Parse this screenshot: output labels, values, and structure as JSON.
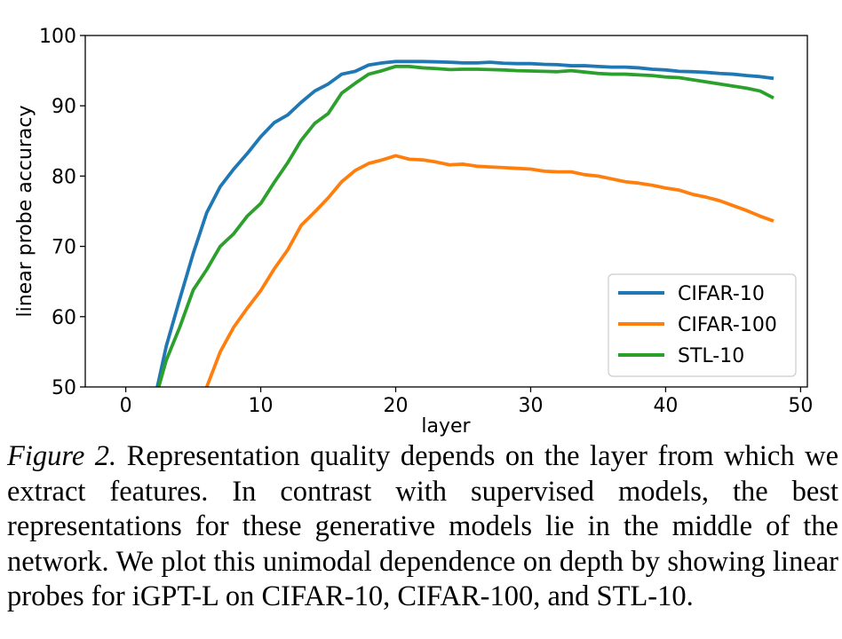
{
  "chart_data": {
    "type": "line",
    "xlabel": "layer",
    "ylabel": "linear probe accuracy",
    "xlim": [
      -3,
      50.5
    ],
    "ylim": [
      50,
      100
    ],
    "xticks": [
      0,
      10,
      20,
      30,
      40,
      50
    ],
    "yticks": [
      50,
      60,
      70,
      80,
      90,
      100
    ],
    "grid": false,
    "legend_position": "lower-right",
    "series": [
      {
        "name": "CIFAR-10",
        "color": "#1f77b4",
        "x": [
          2,
          3,
          4,
          5,
          6,
          7,
          8,
          9,
          10,
          11,
          12,
          13,
          14,
          15,
          16,
          17,
          18,
          19,
          20,
          21,
          22,
          23,
          24,
          25,
          26,
          27,
          28,
          29,
          30,
          31,
          32,
          33,
          34,
          35,
          36,
          37,
          38,
          39,
          40,
          41,
          42,
          43,
          44,
          45,
          46,
          47,
          48
        ],
        "values": [
          47,
          55.8,
          62.5,
          69.0,
          74.8,
          78.5,
          81.0,
          83.2,
          85.6,
          87.6,
          88.7,
          90.5,
          92.1,
          93.1,
          94.5,
          94.9,
          95.8,
          96.1,
          96.3,
          96.3,
          96.3,
          96.25,
          96.2,
          96.1,
          96.1,
          96.2,
          96.05,
          96.0,
          96.0,
          95.9,
          95.85,
          95.7,
          95.7,
          95.6,
          95.5,
          95.5,
          95.4,
          95.2,
          95.1,
          94.9,
          94.85,
          94.75,
          94.6,
          94.5,
          94.3,
          94.15,
          93.9
        ]
      },
      {
        "name": "CIFAR-100",
        "color": "#ff7f0e",
        "x": [
          5.5,
          6,
          7,
          8,
          9,
          10,
          11,
          12,
          13,
          14,
          15,
          16,
          17,
          18,
          19,
          20,
          21,
          22,
          23,
          24,
          25,
          26,
          27,
          28,
          29,
          30,
          31,
          32,
          33,
          34,
          35,
          36,
          37,
          38,
          39,
          40,
          41,
          42,
          43,
          44,
          45,
          46,
          47,
          48
        ],
        "values": [
          48,
          50.0,
          55.0,
          58.5,
          61.2,
          63.7,
          66.8,
          69.5,
          73.0,
          74.9,
          76.9,
          79.2,
          80.8,
          81.8,
          82.3,
          82.9,
          82.4,
          82.3,
          82.0,
          81.6,
          81.7,
          81.4,
          81.3,
          81.2,
          81.1,
          81.0,
          80.7,
          80.6,
          80.6,
          80.2,
          80.0,
          79.6,
          79.2,
          79.0,
          78.7,
          78.3,
          78.0,
          77.4,
          77.0,
          76.5,
          75.8,
          75.1,
          74.3,
          73.6
        ]
      },
      {
        "name": "STL-10",
        "color": "#2ca02c",
        "x": [
          2,
          3,
          4,
          5,
          6,
          7,
          8,
          9,
          10,
          11,
          12,
          13,
          14,
          15,
          16,
          17,
          18,
          19,
          20,
          21,
          22,
          23,
          24,
          25,
          26,
          27,
          28,
          29,
          30,
          31,
          32,
          33,
          34,
          35,
          36,
          37,
          38,
          39,
          40,
          41,
          42,
          43,
          44,
          45,
          46,
          47,
          48
        ],
        "values": [
          47,
          53.8,
          58.5,
          63.8,
          66.7,
          70.0,
          71.8,
          74.3,
          76.1,
          79.1,
          81.9,
          85.1,
          87.5,
          88.9,
          91.8,
          93.2,
          94.5,
          95.0,
          95.6,
          95.6,
          95.4,
          95.3,
          95.15,
          95.2,
          95.2,
          95.15,
          95.1,
          95.0,
          94.95,
          94.9,
          94.85,
          95.0,
          94.8,
          94.6,
          94.5,
          94.5,
          94.4,
          94.3,
          94.1,
          94.0,
          93.7,
          93.4,
          93.1,
          92.8,
          92.5,
          92.1,
          91.1
        ]
      }
    ]
  },
  "caption": {
    "figure_label": "Figure 2.",
    "text": " Representation quality depends on the layer from which we extract features. In contrast with supervised models, the best representations for these generative models lie in the middle of the network. We plot this unimodal dependence on depth by showing linear probes for iGPT-L on CIFAR-10, CIFAR-100, and STL-10."
  }
}
